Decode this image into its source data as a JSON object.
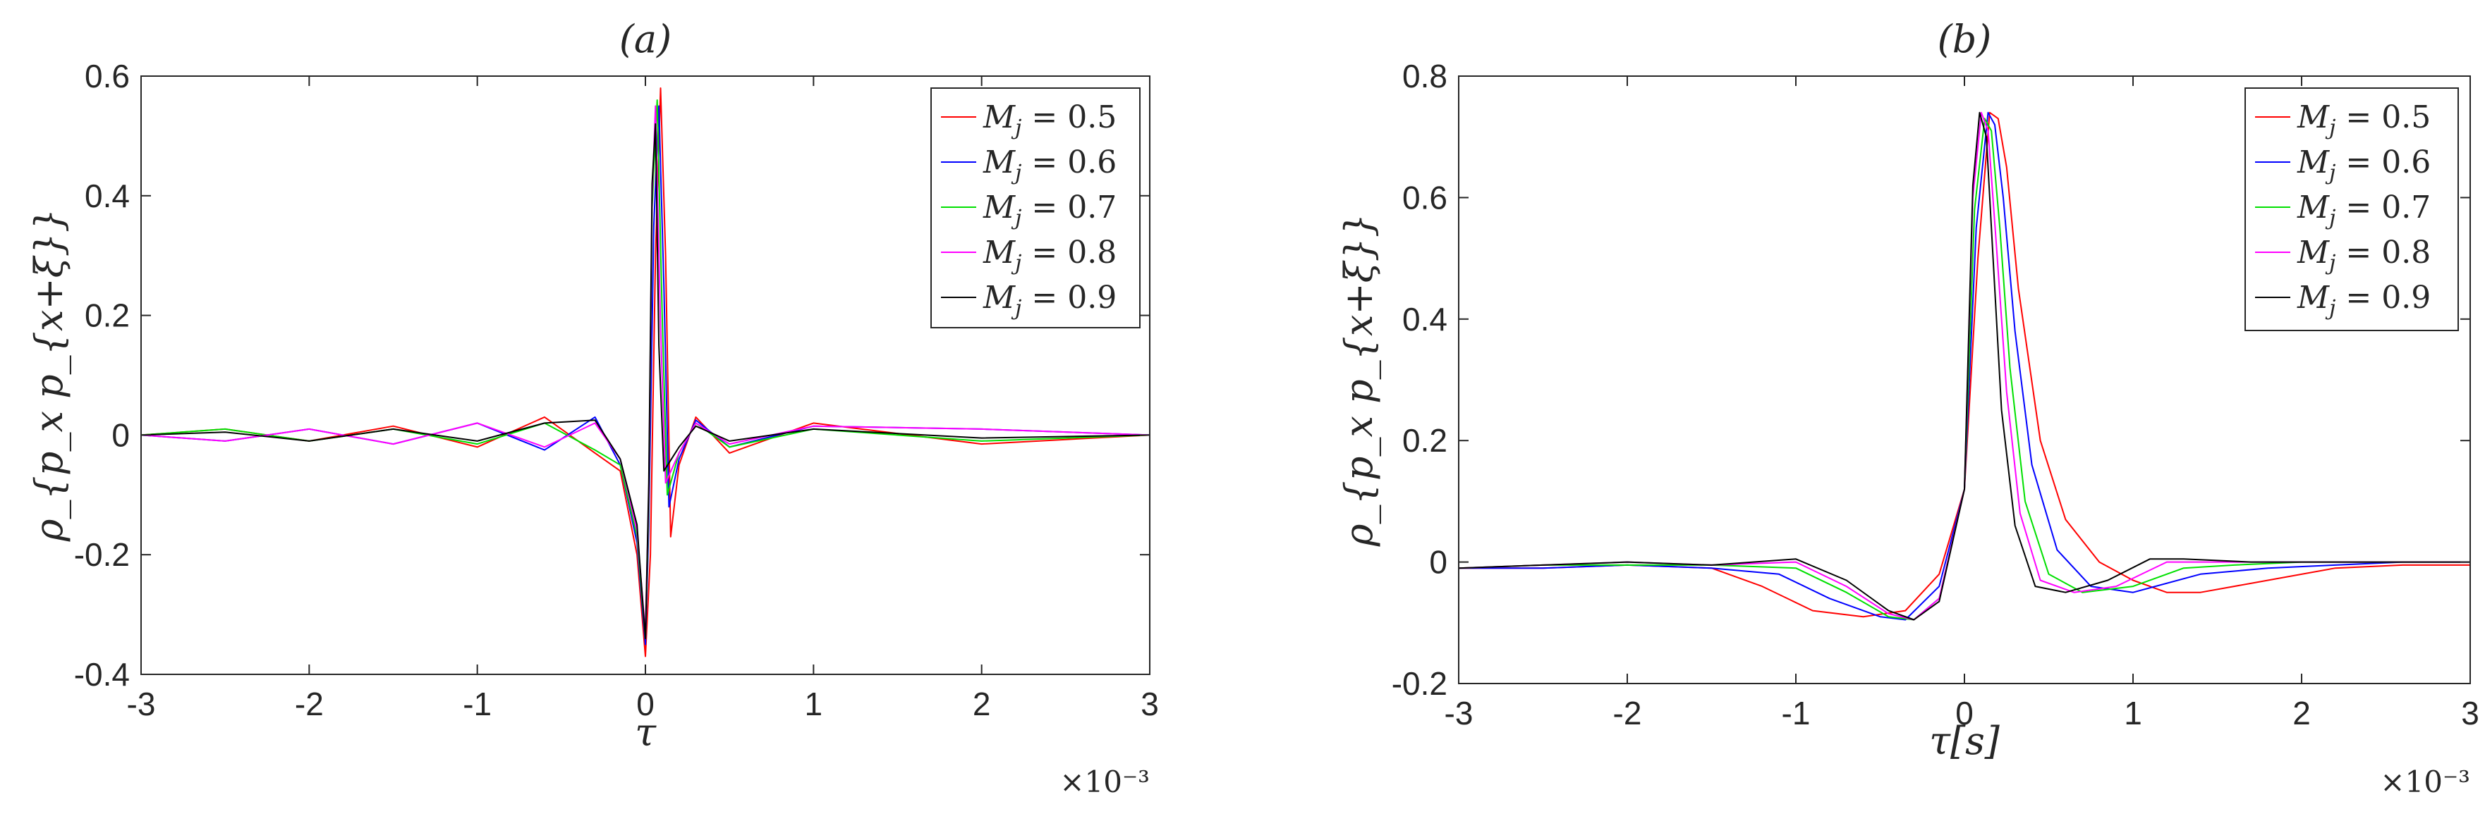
{
  "chart_data": [
    {
      "type": "line",
      "title": "(a)",
      "xlabel": "τ",
      "ylabel": "ρ_{p_x p_{x+ξ}}",
      "x_multiplier_label": "×10⁻³",
      "xlim": [
        -3,
        3
      ],
      "ylim": [
        -0.4,
        0.6
      ],
      "xticks": [
        -3,
        -2,
        -1,
        0,
        1,
        2,
        3
      ],
      "yticks": [
        -0.4,
        -0.2,
        0,
        0.2,
        0.4,
        0.6
      ],
      "xtick_labels": [
        "-3",
        "-2",
        "-1",
        "0",
        "1",
        "2",
        "3"
      ],
      "ytick_labels": [
        "-0.4",
        "-0.2",
        "0",
        "0.2",
        "0.4",
        "0.6"
      ],
      "grid": false,
      "legend_position": "top-right",
      "series": [
        {
          "name": "M_j = 0.5",
          "legend": "= 0.5",
          "color": "#ff0000",
          "x": [
            -3,
            -2.5,
            -2,
            -1.5,
            -1,
            -0.6,
            -0.3,
            -0.15,
            -0.05,
            0,
            0.03,
            0.06,
            0.09,
            0.12,
            0.15,
            0.2,
            0.3,
            0.5,
            1,
            2,
            3
          ],
          "y": [
            0,
            0.01,
            -0.01,
            0.015,
            -0.02,
            0.03,
            -0.03,
            -0.06,
            -0.2,
            -0.37,
            -0.2,
            0.3,
            0.58,
            0.3,
            -0.17,
            -0.05,
            0.03,
            -0.03,
            0.02,
            -0.015,
            0
          ]
        },
        {
          "name": "M_j = 0.6",
          "legend": "= 0.6",
          "color": "#0000ff",
          "x": [
            -3,
            -2.5,
            -2,
            -1.5,
            -1,
            -0.6,
            -0.3,
            -0.15,
            -0.05,
            0,
            0.02,
            0.05,
            0.08,
            0.11,
            0.14,
            0.2,
            0.3,
            0.5,
            1,
            2,
            3
          ],
          "y": [
            0,
            -0.01,
            0.01,
            -0.015,
            0.02,
            -0.025,
            0.03,
            -0.05,
            -0.18,
            -0.35,
            -0.15,
            0.35,
            0.55,
            0.25,
            -0.12,
            -0.04,
            0.025,
            -0.02,
            0.015,
            0.01,
            0
          ]
        },
        {
          "name": "M_j = 0.7",
          "legend": "= 0.7",
          "color": "#00e000",
          "x": [
            -3,
            -2.5,
            -2,
            -1.5,
            -1,
            -0.6,
            -0.3,
            -0.15,
            -0.05,
            0,
            0.02,
            0.04,
            0.07,
            0.1,
            0.13,
            0.2,
            0.3,
            0.5,
            1,
            2,
            3
          ],
          "y": [
            0,
            0.01,
            -0.01,
            0.01,
            -0.015,
            0.02,
            -0.025,
            -0.05,
            -0.17,
            -0.34,
            -0.12,
            0.38,
            0.56,
            0.2,
            -0.1,
            -0.03,
            0.02,
            -0.02,
            0.01,
            -0.01,
            0
          ]
        },
        {
          "name": "M_j = 0.8",
          "legend": "= 0.8",
          "color": "#ff00ff",
          "x": [
            -3,
            -2.5,
            -2,
            -1.5,
            -1,
            -0.6,
            -0.3,
            -0.15,
            -0.05,
            0,
            0.02,
            0.04,
            0.06,
            0.09,
            0.12,
            0.2,
            0.3,
            0.5,
            1,
            2,
            3
          ],
          "y": [
            0,
            -0.01,
            0.01,
            -0.015,
            0.02,
            -0.02,
            0.02,
            -0.04,
            -0.16,
            -0.33,
            -0.1,
            0.4,
            0.55,
            0.18,
            -0.08,
            -0.03,
            0.02,
            -0.015,
            0.015,
            0.01,
            0
          ]
        },
        {
          "name": "M_j = 0.9",
          "legend": "= 0.9",
          "color": "#000000",
          "x": [
            -3,
            -2.5,
            -2,
            -1.5,
            -1,
            -0.6,
            -0.3,
            -0.15,
            -0.05,
            0,
            0.02,
            0.04,
            0.06,
            0.08,
            0.11,
            0.2,
            0.3,
            0.5,
            1,
            2,
            3
          ],
          "y": [
            0,
            0.005,
            -0.01,
            0.01,
            -0.01,
            0.02,
            0.025,
            -0.04,
            -0.15,
            -0.34,
            -0.08,
            0.42,
            0.52,
            0.15,
            -0.06,
            -0.02,
            0.015,
            -0.01,
            0.01,
            -0.005,
            0
          ]
        }
      ]
    },
    {
      "type": "line",
      "title": "(b)",
      "xlabel": "τ[s]",
      "ylabel": "ρ_{p_x p_{x+ξ}}",
      "x_multiplier_label": "×10⁻³",
      "xlim": [
        -3,
        3
      ],
      "ylim": [
        -0.2,
        0.8
      ],
      "xticks": [
        -3,
        -2,
        -1,
        0,
        1,
        2,
        3
      ],
      "yticks": [
        -0.2,
        0,
        0.2,
        0.4,
        0.6,
        0.8
      ],
      "xtick_labels": [
        "-3",
        "-2",
        "-1",
        "0",
        "1",
        "2",
        "3"
      ],
      "ytick_labels": [
        "-0.2",
        "0",
        "0.2",
        "0.4",
        "0.6",
        "0.8"
      ],
      "grid": false,
      "legend_position": "top-right",
      "series": [
        {
          "name": "M_j = 0.5",
          "legend": "= 0.5",
          "color": "#ff0000",
          "x": [
            -3,
            -2.5,
            -2,
            -1.5,
            -1.2,
            -0.9,
            -0.6,
            -0.35,
            -0.15,
            0,
            0.08,
            0.15,
            0.2,
            0.25,
            0.32,
            0.45,
            0.6,
            0.8,
            1.0,
            1.2,
            1.4,
            1.8,
            2.2,
            2.6,
            3
          ],
          "y": [
            -0.01,
            -0.01,
            -0.005,
            -0.01,
            -0.04,
            -0.08,
            -0.09,
            -0.08,
            -0.02,
            0.12,
            0.5,
            0.74,
            0.73,
            0.65,
            0.45,
            0.2,
            0.07,
            0.0,
            -0.03,
            -0.05,
            -0.05,
            -0.03,
            -0.01,
            -0.005,
            -0.005
          ]
        },
        {
          "name": "M_j = 0.6",
          "legend": "= 0.6",
          "color": "#0000ff",
          "x": [
            -3,
            -2.5,
            -2,
            -1.5,
            -1.1,
            -0.8,
            -0.5,
            -0.35,
            -0.15,
            0,
            0.07,
            0.14,
            0.18,
            0.23,
            0.3,
            0.4,
            0.55,
            0.75,
            1.0,
            1.4,
            1.8,
            2.2,
            2.6,
            3
          ],
          "y": [
            -0.01,
            -0.01,
            -0.005,
            -0.01,
            -0.02,
            -0.06,
            -0.09,
            -0.095,
            -0.04,
            0.12,
            0.55,
            0.74,
            0.72,
            0.6,
            0.38,
            0.16,
            0.02,
            -0.04,
            -0.05,
            -0.02,
            -0.01,
            -0.005,
            0,
            0
          ]
        },
        {
          "name": "M_j = 0.7",
          "legend": "= 0.7",
          "color": "#00e000",
          "x": [
            -3,
            -2.5,
            -2,
            -1.5,
            -1.0,
            -0.7,
            -0.45,
            -0.3,
            -0.15,
            0,
            0.06,
            0.12,
            0.16,
            0.21,
            0.27,
            0.36,
            0.5,
            0.7,
            1.0,
            1.3,
            1.6,
            2.0,
            2.5,
            3
          ],
          "y": [
            -0.01,
            -0.005,
            -0.005,
            -0.005,
            -0.01,
            -0.05,
            -0.09,
            -0.095,
            -0.06,
            0.12,
            0.58,
            0.73,
            0.71,
            0.55,
            0.32,
            0.1,
            -0.02,
            -0.05,
            -0.04,
            -0.01,
            -0.005,
            0,
            0,
            0
          ]
        },
        {
          "name": "M_j = 0.8",
          "legend": "= 0.8",
          "color": "#ff00ff",
          "x": [
            -3,
            -2.5,
            -2,
            -1.5,
            -1.0,
            -0.7,
            -0.45,
            -0.3,
            -0.15,
            0,
            0.05,
            0.1,
            0.14,
            0.19,
            0.25,
            0.33,
            0.45,
            0.65,
            0.9,
            1.2,
            1.6,
            2.0,
            2.5,
            3
          ],
          "y": [
            -0.01,
            -0.005,
            0,
            -0.005,
            0.0,
            -0.04,
            -0.085,
            -0.095,
            -0.06,
            0.12,
            0.6,
            0.74,
            0.71,
            0.52,
            0.28,
            0.08,
            -0.03,
            -0.05,
            -0.04,
            0.0,
            0.0,
            0,
            0,
            0
          ]
        },
        {
          "name": "M_j = 0.9",
          "legend": "= 0.9",
          "color": "#000000",
          "x": [
            -3,
            -2.5,
            -2,
            -1.5,
            -1.0,
            -0.7,
            -0.45,
            -0.3,
            -0.15,
            0,
            0.05,
            0.09,
            0.13,
            0.17,
            0.22,
            0.3,
            0.42,
            0.6,
            0.85,
            1.1,
            1.3,
            1.7,
            2.2,
            3
          ],
          "y": [
            -0.01,
            -0.005,
            0,
            -0.005,
            0.005,
            -0.03,
            -0.08,
            -0.095,
            -0.065,
            0.12,
            0.62,
            0.74,
            0.7,
            0.5,
            0.25,
            0.06,
            -0.04,
            -0.05,
            -0.03,
            0.005,
            0.005,
            0,
            0,
            0
          ]
        }
      ]
    }
  ]
}
